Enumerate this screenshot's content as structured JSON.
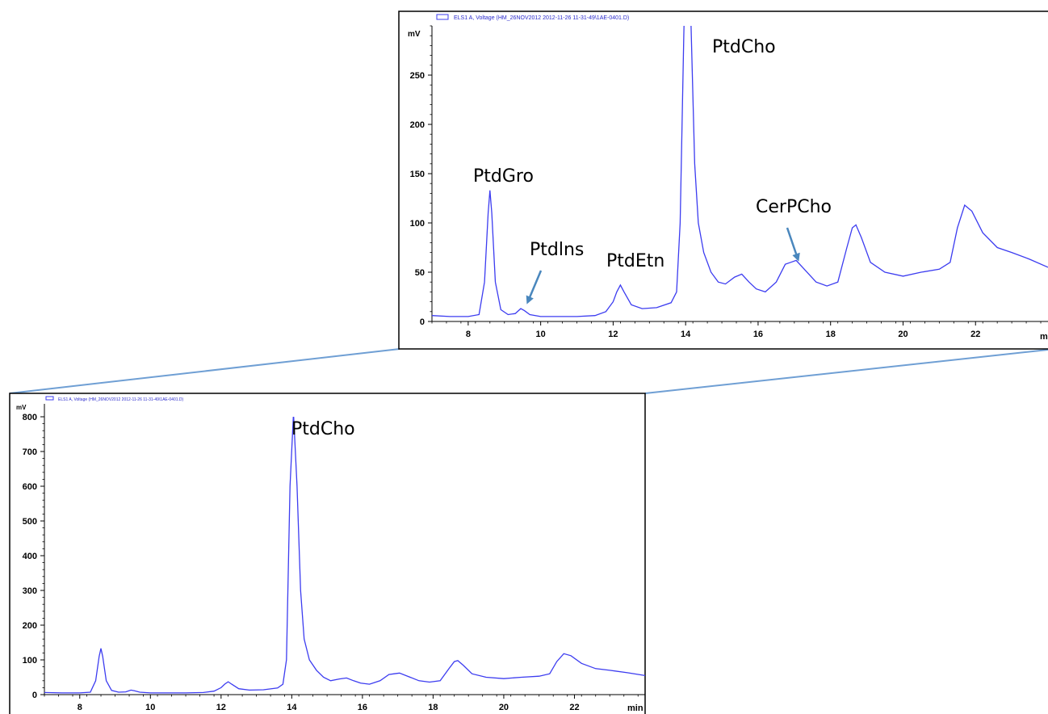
{
  "colors": {
    "trace": "#3c3cf0",
    "connector": "#6f9fd4",
    "arrow": "#4a87bd",
    "frame": "#000000"
  },
  "chart_data": [
    {
      "type": "line",
      "legend": "ELS1 A, Voltage (HM_26NOV2012 2012-11-26 11-31-49\\1AE-0401.D)",
      "ylabel": "mV",
      "xlabel": "m",
      "xlim": [
        7,
        24
      ],
      "ylim": [
        0,
        300
      ],
      "xticks": [
        "8",
        "10",
        "12",
        "14",
        "16",
        "18",
        "20",
        "22"
      ],
      "yticks": [
        "0",
        "50",
        "100",
        "150",
        "200",
        "250"
      ],
      "series": [
        {
          "x": [
            7,
            7.5,
            8,
            8.3,
            8.45,
            8.55,
            8.6,
            8.65,
            8.75,
            8.9,
            9.1,
            9.3,
            9.45,
            9.55,
            9.7,
            10,
            10.5,
            11,
            11.5,
            11.8,
            12,
            12.1,
            12.2,
            12.3,
            12.5,
            12.8,
            13.2,
            13.6,
            13.75,
            13.85,
            13.95,
            14.05,
            14.15,
            14.25,
            14.35,
            14.5,
            14.7,
            14.9,
            15.1,
            15.35,
            15.55,
            15.75,
            15.95,
            16.2,
            16.5,
            16.75,
            16.9,
            17.05,
            17.3,
            17.6,
            17.9,
            18.2,
            18.45,
            18.6,
            18.7,
            18.85,
            19.1,
            19.5,
            20,
            20.5,
            21,
            21.3,
            21.5,
            21.7,
            21.9,
            22.2,
            22.6,
            23,
            23.5,
            24
          ],
          "y": [
            6,
            5,
            5,
            7,
            40,
            110,
            133,
            110,
            40,
            12,
            7,
            8,
            13,
            11,
            7,
            5,
            5,
            5,
            6,
            10,
            20,
            30,
            37,
            30,
            17,
            13,
            14,
            19,
            30,
            100,
            290,
            450,
            300,
            160,
            100,
            70,
            50,
            40,
            38,
            45,
            48,
            40,
            33,
            30,
            40,
            58,
            60,
            62,
            52,
            40,
            36,
            40,
            75,
            95,
            98,
            85,
            60,
            50,
            46,
            50,
            53,
            60,
            95,
            118,
            112,
            90,
            75,
            70,
            63,
            55
          ]
        }
      ],
      "annotations": [
        "PtdGro",
        "Ptdlns",
        "PtdEtn",
        "PtdCho",
        "CerPCho"
      ]
    },
    {
      "type": "line",
      "legend": "ELS1 A, Voltage (HM_26NOV2012 2012-11-26 11-31-49\\1AE-0401.D)",
      "ylabel": "mV",
      "xlabel": "min",
      "xlim": [
        7,
        24
      ],
      "ylim": [
        0,
        800
      ],
      "xticks": [
        "8",
        "10",
        "12",
        "14",
        "16",
        "18",
        "20",
        "22"
      ],
      "yticks": [
        "0",
        "100",
        "200",
        "300",
        "400",
        "500",
        "600",
        "700",
        "800"
      ],
      "series": [
        {
          "x": [
            7,
            7.5,
            8,
            8.3,
            8.45,
            8.55,
            8.6,
            8.65,
            8.75,
            8.9,
            9.1,
            9.3,
            9.45,
            9.55,
            9.7,
            10,
            10.5,
            11,
            11.5,
            11.8,
            12,
            12.1,
            12.2,
            12.3,
            12.5,
            12.8,
            13.2,
            13.6,
            13.75,
            13.85,
            13.95,
            14.05,
            14.15,
            14.25,
            14.35,
            14.5,
            14.7,
            14.9,
            15.1,
            15.35,
            15.55,
            15.75,
            15.95,
            16.2,
            16.5,
            16.75,
            16.9,
            17.05,
            17.3,
            17.6,
            17.9,
            18.2,
            18.45,
            18.6,
            18.7,
            18.85,
            19.1,
            19.5,
            20,
            20.5,
            21,
            21.3,
            21.5,
            21.7,
            21.9,
            22.2,
            22.6,
            23,
            23.5,
            24
          ],
          "y": [
            6,
            5,
            5,
            7,
            40,
            110,
            133,
            110,
            40,
            12,
            7,
            8,
            13,
            11,
            7,
            5,
            5,
            5,
            6,
            10,
            20,
            30,
            37,
            30,
            17,
            13,
            14,
            19,
            30,
            100,
            600,
            810,
            600,
            300,
            160,
            100,
            70,
            50,
            40,
            45,
            48,
            40,
            33,
            30,
            40,
            58,
            60,
            62,
            52,
            40,
            36,
            40,
            75,
            95,
            98,
            85,
            60,
            50,
            46,
            50,
            53,
            60,
            95,
            118,
            112,
            90,
            75,
            70,
            63,
            55
          ]
        }
      ],
      "annotations": [
        "PtdCho"
      ]
    }
  ]
}
